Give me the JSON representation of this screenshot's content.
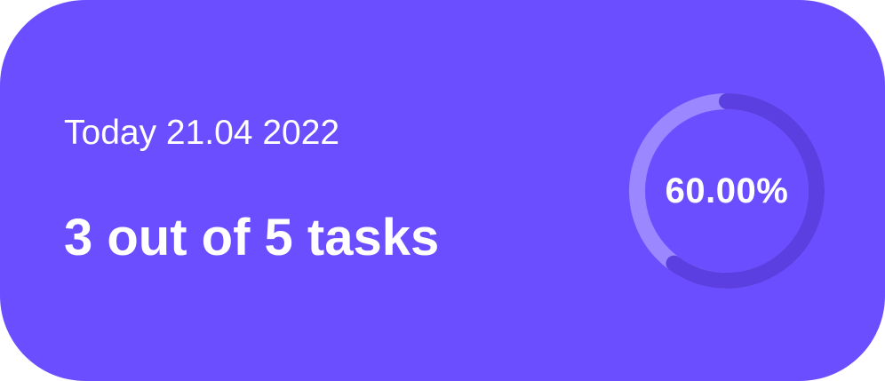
{
  "card": {
    "date_label": "Today 21.04 2022",
    "tasks_summary": "3 out of 5 tasks",
    "progress": {
      "percent_text": "60.00%",
      "fraction": 0.6
    }
  },
  "colors": {
    "background": "#6B4EFF",
    "ring_track": "#9B87FF",
    "ring_fill": "#5B3FE0",
    "text": "#FFFFFF"
  }
}
